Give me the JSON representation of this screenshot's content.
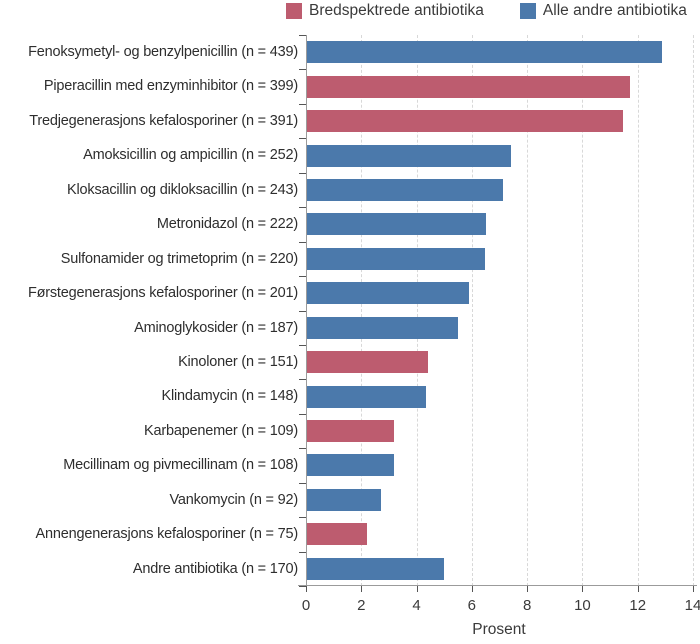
{
  "legend": {
    "items": [
      {
        "name": "broad-spectrum",
        "label": "Bredspektrede antibiotika",
        "color": "#bd5c6f"
      },
      {
        "name": "all-other",
        "label": "Alle andre antibiotika",
        "color": "#4b79ab"
      }
    ]
  },
  "chart_data": {
    "type": "bar",
    "orientation": "horizontal",
    "title": "",
    "xlabel": "Prosent",
    "ylabel": "",
    "xlim": [
      0,
      14
    ],
    "xticks": [
      0,
      2,
      4,
      6,
      8,
      10,
      12,
      14
    ],
    "grid": "vertical dashed gridlines at each x tick",
    "legend_position": "top-center",
    "series_colors": {
      "Bredspektrede antibiotika": "#bd5c6f",
      "Alle andre antibiotika": "#4b79ab"
    },
    "bars": [
      {
        "label": "Fenoksymetyl- og benzylpenicillin (n = 439)",
        "n": 439,
        "value": 12.88,
        "series": "Alle andre antibiotika"
      },
      {
        "label": "Piperacillin med enzyminhibitor (n = 399)",
        "n": 399,
        "value": 11.71,
        "series": "Bredspektrede antibiotika"
      },
      {
        "label": "Tredjegenerasjons kefalosporiner (n = 391)",
        "n": 391,
        "value": 11.48,
        "series": "Bredspektrede antibiotika"
      },
      {
        "label": "Amoksicillin og ampicillin (n = 252)",
        "n": 252,
        "value": 7.4,
        "series": "Alle andre antibiotika"
      },
      {
        "label": "Kloksacillin og dikloksacillin (n = 243)",
        "n": 243,
        "value": 7.13,
        "series": "Alle andre antibiotika"
      },
      {
        "label": "Metronidazol (n = 222)",
        "n": 222,
        "value": 6.52,
        "series": "Alle andre antibiotika"
      },
      {
        "label": "Sulfonamider og trimetoprim (n = 220)",
        "n": 220,
        "value": 6.46,
        "series": "Alle andre antibiotika"
      },
      {
        "label": "Førstegenerasjons kefalosporiner (n = 201)",
        "n": 201,
        "value": 5.9,
        "series": "Alle andre antibiotika"
      },
      {
        "label": "Aminoglykosider (n = 187)",
        "n": 187,
        "value": 5.49,
        "series": "Alle andre antibiotika"
      },
      {
        "label": "Kinoloner (n = 151)",
        "n": 151,
        "value": 4.43,
        "series": "Bredspektrede antibiotika"
      },
      {
        "label": "Klindamycin (n = 148)",
        "n": 148,
        "value": 4.34,
        "series": "Alle andre antibiotika"
      },
      {
        "label": "Karbapenemer (n = 109)",
        "n": 109,
        "value": 3.2,
        "series": "Bredspektrede antibiotika"
      },
      {
        "label": "Mecillinam og pivmecillinam (n = 108)",
        "n": 108,
        "value": 3.17,
        "series": "Alle andre antibiotika"
      },
      {
        "label": "Vankomycin (n = 92)",
        "n": 92,
        "value": 2.7,
        "series": "Alle andre antibiotika"
      },
      {
        "label": "Annengenerasjons kefalosporiner (n = 75)",
        "n": 75,
        "value": 2.2,
        "series": "Bredspektrede antibiotika"
      },
      {
        "label": "Andre antibiotika (n = 170)",
        "n": 170,
        "value": 4.99,
        "series": "Alle andre antibiotika"
      }
    ]
  }
}
